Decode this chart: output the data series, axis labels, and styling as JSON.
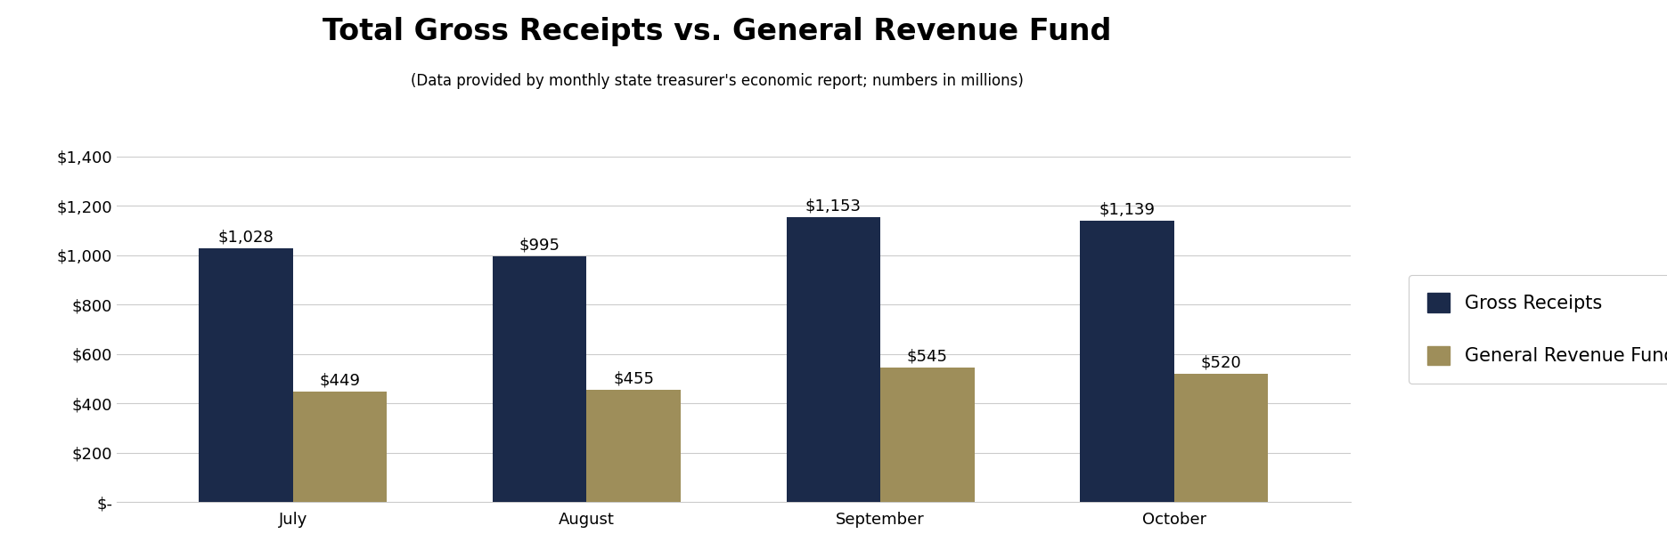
{
  "title": "Total Gross Receipts vs. General Revenue Fund",
  "subtitle": "(Data provided by monthly state treasurer's economic report; numbers in millions)",
  "categories": [
    "July",
    "August",
    "September",
    "October"
  ],
  "gross_receipts": [
    1028,
    995,
    1153,
    1139
  ],
  "general_revenue": [
    449,
    455,
    545,
    520
  ],
  "bar_color_gross": "#1B2A4A",
  "bar_color_revenue": "#9E8E5A",
  "legend_labels": [
    "Gross Receipts",
    "General Revenue Fund"
  ],
  "ylim": [
    0,
    1400
  ],
  "yticks": [
    0,
    200,
    400,
    600,
    800,
    1000,
    1200,
    1400
  ],
  "ytick_labels": [
    "$-",
    "$200",
    "$400",
    "$600",
    "$800",
    "$1,000",
    "$1,200",
    "$1,400"
  ],
  "title_fontsize": 24,
  "subtitle_fontsize": 12,
  "label_fontsize": 13,
  "legend_fontsize": 15,
  "tick_fontsize": 13,
  "bar_width": 0.32,
  "background_color": "#FFFFFF",
  "grid_color": "#CCCCCC"
}
